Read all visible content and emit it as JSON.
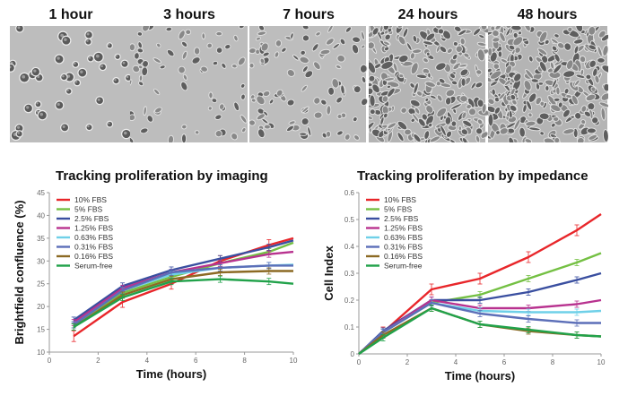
{
  "panels": [
    {
      "label": "1 hour"
    },
    {
      "label": "3 hours"
    },
    {
      "label": "7 hours"
    },
    {
      "label": "24 hours"
    },
    {
      "label": "48 hours"
    }
  ],
  "chart_data": [
    {
      "type": "line",
      "title": "Tracking proliferation by imaging",
      "xlabel": "Time (hours)",
      "ylabel": "Brightfield confluence (%)",
      "xlim": [
        0,
        10
      ],
      "ylim": [
        10,
        45
      ],
      "xticks": [
        0,
        2,
        4,
        6,
        8,
        10
      ],
      "yticks": [
        10,
        15,
        20,
        25,
        30,
        35,
        40,
        45
      ],
      "legend": "top-left",
      "x": [
        1,
        3,
        5,
        7,
        9,
        10
      ],
      "series": [
        {
          "name": "10% FBS",
          "color": "#e8262a",
          "values": [
            13.5,
            21,
            25,
            30,
            33.5,
            35
          ]
        },
        {
          "name": "5% FBS",
          "color": "#74c043",
          "values": [
            16,
            23,
            26.5,
            29.5,
            32,
            34
          ]
        },
        {
          "name": "2.5% FBS",
          "color": "#3a4fa0",
          "values": [
            17,
            24.5,
            28,
            30.5,
            33,
            34.5
          ]
        },
        {
          "name": "1.25% FBS",
          "color": "#b8328f",
          "values": [
            16.5,
            24,
            27.5,
            29.5,
            31.5,
            32
          ]
        },
        {
          "name": "0.63% FBS",
          "color": "#6fd0e8",
          "values": [
            16,
            23.5,
            27,
            28.5,
            29,
            29.2
          ]
        },
        {
          "name": "0.31% FBS",
          "color": "#5c6fb8",
          "values": [
            16,
            23.5,
            27.5,
            28.5,
            29,
            29
          ]
        },
        {
          "name": "0.16% FBS",
          "color": "#8c6a24",
          "values": [
            15.5,
            22.5,
            26,
            27.5,
            27.8,
            27.8
          ]
        },
        {
          "name": "Serum-free",
          "color": "#21a24a",
          "values": [
            15.5,
            22,
            25.5,
            26,
            25.5,
            25
          ]
        }
      ]
    },
    {
      "type": "line",
      "title": "Tracking proliferation by impedance",
      "xlabel": "Time (hours)",
      "ylabel": "Cell Index",
      "xlim": [
        0,
        10
      ],
      "ylim": [
        0,
        0.6
      ],
      "xticks": [
        0,
        2,
        4,
        6,
        8,
        10
      ],
      "yticks": [
        0,
        0.1,
        0.2,
        0.3,
        0.4,
        0.5,
        0.6
      ],
      "legend": "top-left",
      "x": [
        0,
        1,
        3,
        5,
        7,
        9,
        10
      ],
      "series": [
        {
          "name": "10% FBS",
          "color": "#e8262a",
          "values": [
            0,
            0.08,
            0.24,
            0.28,
            0.36,
            0.46,
            0.52
          ]
        },
        {
          "name": "5% FBS",
          "color": "#74c043",
          "values": [
            0,
            0.08,
            0.19,
            0.22,
            0.28,
            0.34,
            0.375
          ]
        },
        {
          "name": "2.5% FBS",
          "color": "#3a4fa0",
          "values": [
            0,
            0.085,
            0.2,
            0.2,
            0.23,
            0.275,
            0.3
          ]
        },
        {
          "name": "1.25% FBS",
          "color": "#b8328f",
          "values": [
            0,
            0.08,
            0.2,
            0.17,
            0.17,
            0.185,
            0.2
          ]
        },
        {
          "name": "0.63% FBS",
          "color": "#6fd0e8",
          "values": [
            0,
            0.08,
            0.19,
            0.16,
            0.155,
            0.155,
            0.16
          ]
        },
        {
          "name": "0.31% FBS",
          "color": "#5c6fb8",
          "values": [
            0,
            0.08,
            0.19,
            0.15,
            0.13,
            0.115,
            0.115
          ]
        },
        {
          "name": "0.16% FBS",
          "color": "#8c6a24",
          "values": [
            0,
            0.07,
            0.17,
            0.11,
            0.085,
            0.07,
            0.065
          ]
        },
        {
          "name": "Serum-free",
          "color": "#21a24a",
          "values": [
            0,
            0.06,
            0.17,
            0.11,
            0.09,
            0.07,
            0.065
          ]
        }
      ]
    }
  ]
}
